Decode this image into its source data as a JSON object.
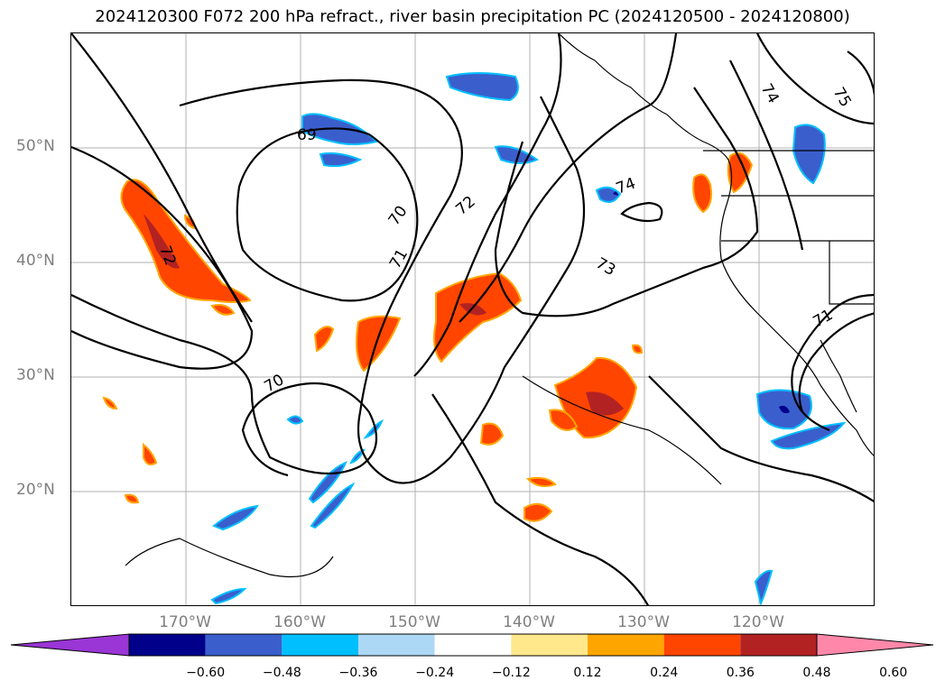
{
  "title": "2024120300 F072 200 hPa refract., river basin precipitation PC (2024120500 - 2024120800)",
  "lat_labels": [
    "50°N",
    "40°N",
    "30°N",
    "20°N"
  ],
  "lon_labels": [
    "170°W",
    "160°W",
    "150°W",
    "140°W",
    "130°W",
    "120°W"
  ],
  "contour_labels": [
    "69",
    "70",
    "70",
    "71",
    "72",
    "72",
    "73",
    "74",
    "74",
    "75",
    "71"
  ],
  "colorbar": {
    "ticks": [
      "−0.60",
      "−0.48",
      "−0.36",
      "−0.24",
      "−0.12",
      "0.12",
      "0.24",
      "0.36",
      "0.48",
      "0.60"
    ],
    "colors": [
      "#9a35d6",
      "#00008b",
      "#3a5fcd",
      "#00bfff",
      "#add8f5",
      "#ffffff",
      "#ffe88c",
      "#ffa500",
      "#ff4500",
      "#b22222",
      "#ff88aa"
    ]
  },
  "chart_data": {
    "type": "heatmap",
    "title": "2024120300 F072 200 hPa refract., river basin precipitation PC (2024120500 - 2024120800)",
    "lon_range": [
      -180,
      -110
    ],
    "lat_range": [
      10,
      60
    ],
    "gridlines": true,
    "contour_levels": [
      69,
      70,
      71,
      72,
      73,
      74,
      75
    ],
    "colorbar_levels": [
      -0.6,
      -0.48,
      -0.36,
      -0.24,
      -0.12,
      0.12,
      0.24,
      0.36,
      0.48,
      0.6
    ]
  }
}
